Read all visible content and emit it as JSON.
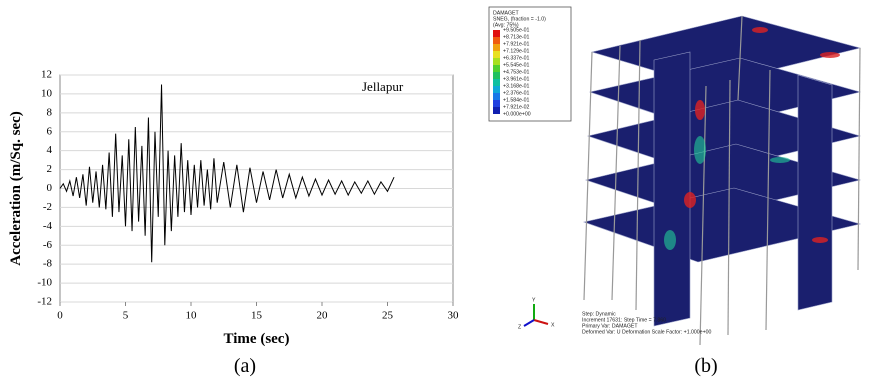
{
  "chart_data": {
    "type": "line",
    "x_label": "Time (sec)",
    "y_label": "Acceleration (m/Sq. sec)",
    "annotation": "Jellapur",
    "x": [
      0,
      0.25,
      0.5,
      0.75,
      1,
      1.25,
      1.5,
      1.75,
      2,
      2.25,
      2.5,
      2.75,
      3,
      3.25,
      3.5,
      3.75,
      4,
      4.25,
      4.5,
      4.75,
      5,
      5.25,
      5.5,
      5.75,
      6,
      6.25,
      6.5,
      6.75,
      7,
      7.25,
      7.5,
      7.75,
      8,
      8.25,
      8.5,
      8.75,
      9,
      9.25,
      9.5,
      9.75,
      10,
      10.25,
      10.5,
      10.75,
      11,
      11.25,
      11.5,
      11.75,
      12,
      12.5,
      13,
      13.5,
      14,
      14.5,
      15,
      15.5,
      16,
      16.5,
      17,
      17.5,
      18,
      18.5,
      19,
      19.5,
      20,
      20.5,
      21,
      21.5,
      22,
      22.5,
      23,
      23.5,
      24,
      24.5,
      25,
      25.5
    ],
    "values": [
      0,
      0.5,
      -0.3,
      0.8,
      -0.8,
      1.2,
      -1,
      1.5,
      -1.8,
      2.3,
      -1.5,
      1.8,
      -2,
      2.5,
      -2.2,
      3.8,
      -3,
      5.8,
      -2.5,
      3.5,
      -4,
      5.2,
      -4.5,
      6.5,
      -3.5,
      4.5,
      -5,
      7.5,
      -7.8,
      6,
      -3,
      11,
      -6,
      4,
      -4.5,
      3.5,
      -3,
      4.8,
      -2.5,
      3,
      -2.8,
      2.5,
      -2,
      3,
      -1.8,
      2,
      -2.2,
      3.2,
      -1.5,
      2.8,
      -2,
      2.5,
      -2.5,
      2.2,
      -1.5,
      1.8,
      -1.2,
      2,
      -1,
      1.5,
      -1,
      1.2,
      -0.8,
      1,
      -0.7,
      0.9,
      -0.6,
      0.8,
      -0.7,
      0.7,
      -0.5,
      0.8,
      -0.6,
      0.7,
      -0.3,
      1.2
    ],
    "color": "#000000",
    "xlim": [
      0,
      30
    ],
    "xticks": [
      0,
      5,
      10,
      15,
      20,
      25,
      30
    ],
    "ylim": [
      -12,
      12
    ],
    "yticks": [
      -12,
      -10,
      -8,
      -6,
      -4,
      -2,
      0,
      2,
      4,
      6,
      8,
      10,
      12
    ],
    "grid": true
  },
  "panel_labels": [
    "(a)",
    "(b)"
  ],
  "model": {
    "legend_header": [
      "DAMAGET",
      "SNEG, (fraction = -1.0)",
      "(Avg: 75%)"
    ],
    "legend_values": [
      "+9.505e-01",
      "+8.713e-01",
      "+7.921e-01",
      "+7.129e-01",
      "+6.337e-01",
      "+5.545e-01",
      "+4.753e-01",
      "+3.961e-01",
      "+3.168e-01",
      "+2.376e-01",
      "+1.584e-01",
      "+7.921e-02",
      "+0.000e+00"
    ],
    "footer": [
      "Step: Dynamic",
      "Increment  17631: Step Time =    7.860",
      "Primary Var: DAMAGET",
      "Deformed Var: U   Deformation Scale Factor: +1.000e+00"
    ],
    "triad": [
      "Y",
      "X",
      "Z"
    ]
  }
}
